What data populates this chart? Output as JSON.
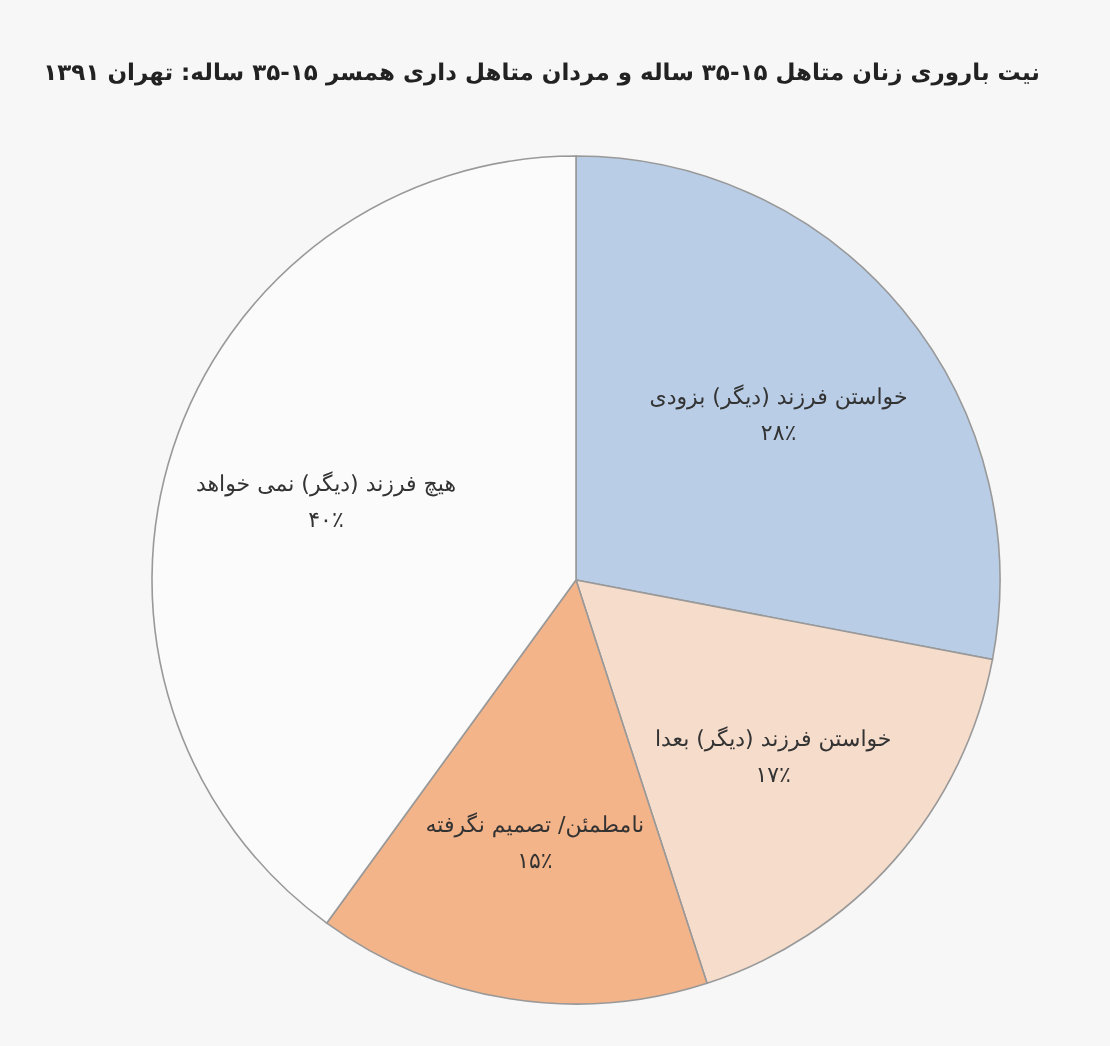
{
  "chart_data": {
    "type": "pie",
    "title": "نیت باروری زنان متاهل ۱۵-۳۵ ساله و مردان متاهل داری همسر ۱۵-۳۵ ساله: تهران ۱۳۹۱",
    "categories": [
      "خواستن فرزند (دیگر) بزودی",
      "خواستن فرزند (دیگر) بعدا",
      "نامطمئن/ تصمیم نگرفته",
      "هیچ فرزند (دیگر) نمی خواهد"
    ],
    "values": [
      28,
      17,
      15,
      40
    ],
    "value_labels": [
      "۲۸٪",
      "۱۷٪",
      "۱۵٪",
      "۴۰٪"
    ],
    "colors": [
      "#b9cde6",
      "#f6dccb",
      "#f4b48a",
      "#fbfbfb"
    ]
  }
}
